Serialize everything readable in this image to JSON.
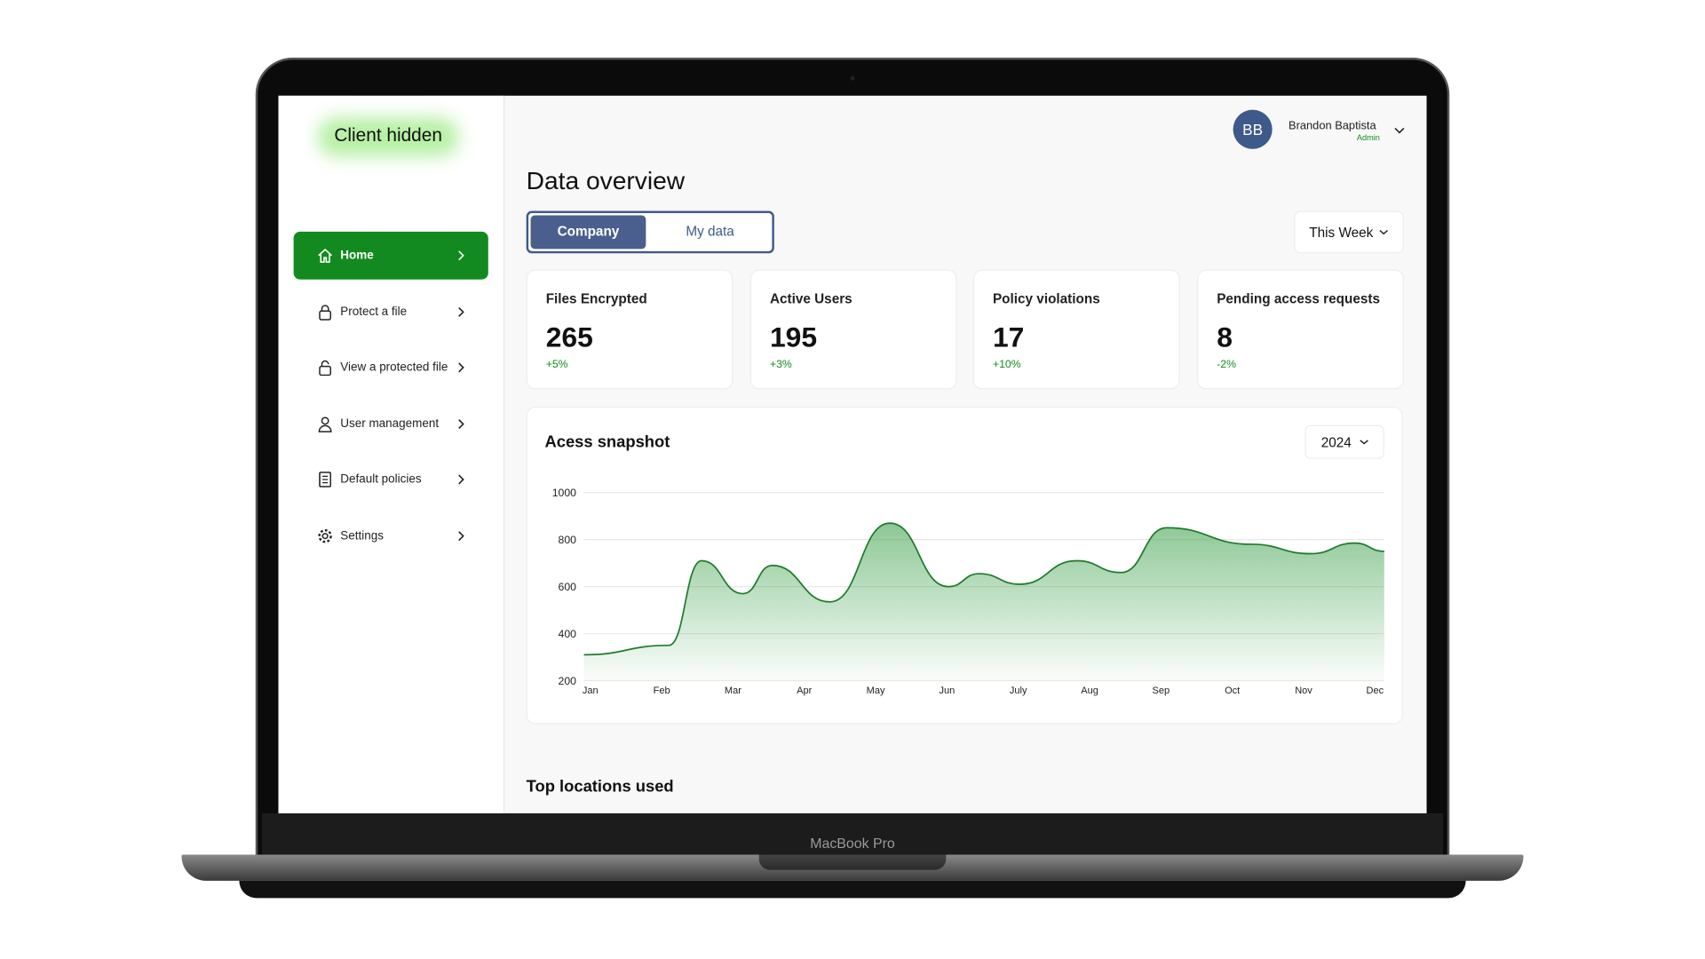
{
  "device": "MacBook Pro",
  "sidebar": {
    "logo": "Client hidden",
    "active": 0,
    "nav": [
      "Home",
      "Protect a file",
      "View a protected file",
      "User management",
      "Default policies",
      "Settings"
    ]
  },
  "user": {
    "initials": "BB",
    "name": "Brandon Baptista",
    "role": "Admin"
  },
  "page_title": "Data overview",
  "tabs": [
    "Company",
    "My data"
  ],
  "active_tab": 0,
  "period": "This Week",
  "cards": [
    {
      "title": "Files Encrypted",
      "value": 265,
      "change": "+5%"
    },
    {
      "title": "Active Users",
      "value": 195,
      "change": "+3%"
    },
    {
      "title": "Policy violations",
      "value": 17,
      "change": "+10%"
    },
    {
      "title": "Pending access requests",
      "value": 8,
      "change": "-2%"
    }
  ],
  "chart_data": {
    "type": "area",
    "title": "Acess snapshot",
    "year": "2024",
    "color": "#1e7a2b",
    "x": [
      -0.09,
      1.1,
      1.56,
      2.14,
      2.55,
      3.36,
      4.2,
      5.02,
      5.45,
      6.02,
      6.82,
      7.44,
      8.08,
      9.27,
      10.1,
      10.72,
      11.13
    ],
    "values": [
      310,
      350,
      710,
      570,
      690,
      535,
      870,
      600,
      655,
      610,
      710,
      660,
      850,
      780,
      740,
      785,
      750
    ],
    "xlim": [
      -0.09,
      11.13
    ],
    "xticks": [
      {
        "value": 0,
        "label": "Jan"
      },
      {
        "value": 1,
        "label": "Feb"
      },
      {
        "value": 2,
        "label": "Mar"
      },
      {
        "value": 3,
        "label": "Apr"
      },
      {
        "value": 4,
        "label": "May"
      },
      {
        "value": 5,
        "label": "Jun"
      },
      {
        "value": 6,
        "label": "July"
      },
      {
        "value": 7,
        "label": "Aug"
      },
      {
        "value": 8,
        "label": "Sep"
      },
      {
        "value": 9,
        "label": "Oct"
      },
      {
        "value": 10,
        "label": "Nov"
      },
      {
        "value": 11,
        "label": "Dec"
      }
    ],
    "ylim": [
      200,
      1000
    ],
    "yticks": [
      200,
      400,
      600,
      800,
      1000
    ],
    "grid": true
  },
  "section_title": "Top locations used"
}
